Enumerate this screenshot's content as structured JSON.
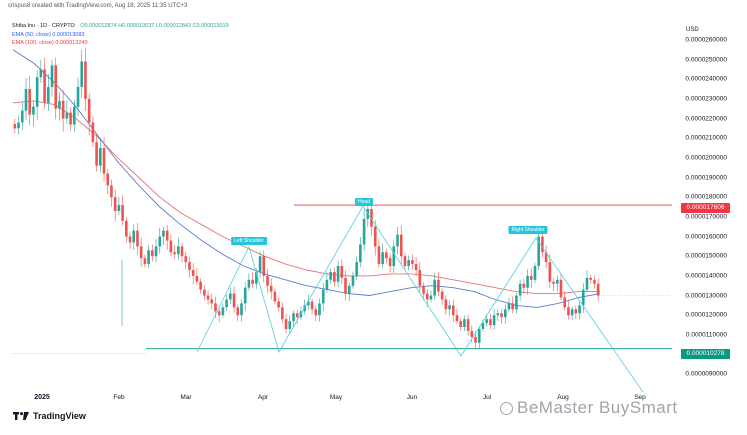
{
  "header": {
    "text": "crispus8 created with TradingView.com, Aug 18, 2025 11:35 UTC+3"
  },
  "legend": {
    "title": "Shiba Inu · 1D · CRYPTO",
    "ohlc": "O0.00001287​4 H0.00001303​7 L0.00001284​3 C0.00001301​9",
    "ema50": "EMA (50, close)  0.00001308​3",
    "ema100": "EMA (100, close)  0.00001324​0"
  },
  "axis": {
    "unit": "USD",
    "price_labels": [
      "0.0000260000",
      "0.0000250000",
      "0.0000240000",
      "0.0000230000",
      "0.0000220000",
      "0.0000210000",
      "0.0000200000",
      "0.0000190000",
      "0.0000180000",
      "0.0000170000",
      "0.0000160000",
      "0.0000150000",
      "0.0000140000",
      "0.0000130000",
      "0.0000120000",
      "0.0000110000",
      "0.0000100000",
      "0.0000090000"
    ],
    "time_labels": [
      "2025",
      "Feb",
      "Mar",
      "Apr",
      "May",
      "Jun",
      "Jul",
      "Aug",
      "Sep"
    ]
  },
  "tags": {
    "resistance": "0.0000176​06",
    "support": "0.0000102​78"
  },
  "annotations": {
    "left_shoulder": "Left Shoulder",
    "head": "Head",
    "right_shoulder": "Right Shoulder"
  },
  "branding": {
    "logo": "TradingView",
    "watermark": "BeMaster BuySmart"
  },
  "colors": {
    "up": "#26a69a",
    "down": "#ef5350",
    "ema50": "#5b7bd5",
    "ema100": "#e57373",
    "resistance": "#f23645",
    "support": "#089981",
    "pattern": "#4dd0e1"
  },
  "chart_data": {
    "type": "candlestick",
    "series": [
      {
        "name": "Shiba Inu",
        "close": [
          2.15e-05,
          2.18e-05,
          2.24e-05,
          2.35e-05,
          2.22e-05,
          2.26e-05,
          2.41e-05,
          2.45e-05,
          2.28e-05,
          2.36e-05,
          2.47e-05,
          2.25e-05,
          2.29e-05,
          2.2e-05,
          2.23e-05,
          2.17e-05,
          2.26e-05,
          2.36e-05,
          2.49e-05,
          2.3e-05,
          2.18e-05,
          2.08e-05,
          1.96e-05,
          2.05e-05,
          1.92e-05,
          1.86e-05,
          1.8e-05,
          1.73e-05,
          1.76e-05,
          1.68e-05,
          1.6e-05,
          1.57e-05,
          1.63e-05,
          1.55e-05,
          1.49e-05,
          1.46e-05,
          1.53e-05,
          1.5e-05,
          1.55e-05,
          1.6e-05,
          1.63e-05,
          1.58e-05,
          1.52e-05,
          1.51e-05,
          1.55e-05,
          1.5e-05,
          1.47e-05,
          1.43e-05,
          1.4e-05,
          1.37e-05,
          1.33e-05,
          1.3e-05,
          1.28e-05,
          1.26e-05,
          1.22e-05,
          1.2e-05,
          1.24e-05,
          1.28e-05,
          1.31e-05,
          1.24e-05,
          1.2e-05,
          1.26e-05,
          1.34e-05,
          1.38e-05,
          1.36e-05,
          1.42e-05,
          1.5e-05,
          1.4e-05,
          1.35e-05,
          1.32e-05,
          1.27e-05,
          1.24e-05,
          1.18e-05,
          1.13e-05,
          1.17e-05,
          1.21e-05,
          1.19e-05,
          1.22e-05,
          1.25e-05,
          1.27e-05,
          1.23e-05,
          1.2e-05,
          1.26e-05,
          1.33e-05,
          1.38e-05,
          1.42e-05,
          1.37e-05,
          1.45e-05,
          1.39e-05,
          1.31e-05,
          1.35e-05,
          1.4e-05,
          1.47e-05,
          1.56e-05,
          1.69e-05,
          1.74e-05,
          1.65e-05,
          1.55e-05,
          1.46e-05,
          1.52e-05,
          1.49e-05,
          1.45e-05,
          1.55e-05,
          1.61e-05,
          1.5e-05,
          1.45e-05,
          1.48e-05,
          1.46e-05,
          1.43e-05,
          1.35e-05,
          1.31e-05,
          1.28e-05,
          1.3e-05,
          1.38e-05,
          1.32e-05,
          1.28e-05,
          1.23e-05,
          1.25e-05,
          1.2e-05,
          1.17e-05,
          1.14e-05,
          1.18e-05,
          1.12e-05,
          1.09e-05,
          1.06e-05,
          1.13e-05,
          1.16e-05,
          1.18e-05,
          1.15e-05,
          1.2e-05,
          1.21e-05,
          1.19e-05,
          1.23e-05,
          1.26e-05,
          1.23e-05,
          1.3e-05,
          1.36e-05,
          1.34e-05,
          1.4e-05,
          1.38e-05,
          1.45e-05,
          1.6e-05,
          1.52e-05,
          1.47e-05,
          1.37e-05,
          1.36e-05,
          1.38e-05,
          1.29e-05,
          1.24e-05,
          1.2e-05,
          1.23e-05,
          1.21e-05,
          1.25e-05,
          1.33e-05,
          1.39e-05,
          1.38e-05,
          1.36e-05,
          1.3e-05
        ]
      }
    ],
    "ylim": [
      8.3e-06,
      2.65e-05
    ],
    "x_labels": [
      "2025",
      "Feb",
      "Mar",
      "Apr",
      "May",
      "Jun",
      "Jul",
      "Aug",
      "Sep"
    ],
    "ema50": [
      2.55e-05,
      2.48e-05,
      2.38e-05,
      2.26e-05,
      2.12e-05,
      1.98e-05,
      1.86e-05,
      1.75e-05,
      1.66e-05,
      1.58e-05,
      1.51e-05,
      1.45e-05,
      1.41e-05,
      1.38e-05,
      1.35e-05,
      1.33e-05,
      1.31e-05,
      1.3e-05,
      1.32e-05,
      1.34e-05,
      1.35e-05,
      1.34e-05,
      1.32e-05,
      1.28e-05,
      1.25e-05,
      1.24e-05,
      1.26e-05,
      1.29e-05,
      1.31e-05
    ],
    "ema100": [
      2.28e-05,
      2.29e-05,
      2.27e-05,
      2.2e-05,
      2.11e-05,
      2e-05,
      1.9e-05,
      1.8e-05,
      1.72e-05,
      1.66e-05,
      1.6e-05,
      1.55e-05,
      1.5e-05,
      1.46e-05,
      1.43e-05,
      1.41e-05,
      1.4e-05,
      1.4e-05,
      1.41e-05,
      1.41e-05,
      1.4e-05,
      1.38e-05,
      1.36e-05,
      1.34e-05,
      1.32e-05,
      1.31e-05,
      1.31e-05,
      1.32e-05,
      1.32e-05
    ],
    "resistance": 1.76e-05,
    "support": 1.03e-05,
    "grid": false
  }
}
